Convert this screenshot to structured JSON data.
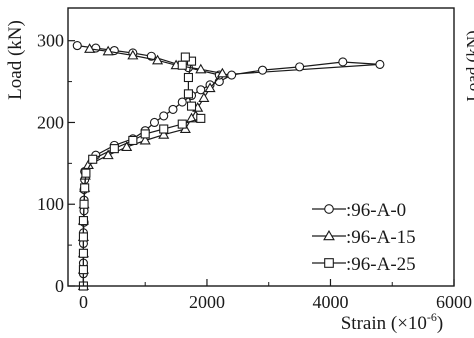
{
  "chart_data": {
    "type": "line",
    "xlabel": "Strain (×10",
    "xlabel_sup": "-6",
    "xlabel_close": ")",
    "ylabel": "Load (kN)",
    "right_ylabel_fragment": "Load (kN)",
    "xlim": [
      -250,
      6000
    ],
    "ylim": [
      0,
      340
    ],
    "xticks": [
      0,
      2000,
      4000,
      6000
    ],
    "yticks": [
      0,
      100,
      200,
      300
    ],
    "grid": false,
    "legend_position": "lower-right",
    "series": [
      {
        "name": ":96-A-0",
        "marker": "circle",
        "points": [
          [
            0,
            0
          ],
          [
            0,
            15
          ],
          [
            0,
            28
          ],
          [
            0,
            40
          ],
          [
            0,
            52
          ],
          [
            0,
            65
          ],
          [
            10,
            78
          ],
          [
            10,
            92
          ],
          [
            10,
            105
          ],
          [
            10,
            118
          ],
          [
            20,
            130
          ],
          [
            20,
            140
          ],
          [
            200,
            160
          ],
          [
            500,
            172
          ],
          [
            800,
            180
          ],
          [
            1000,
            190
          ],
          [
            1150,
            200
          ],
          [
            1300,
            208
          ],
          [
            1450,
            216
          ],
          [
            1600,
            225
          ],
          [
            1750,
            233
          ],
          [
            1900,
            240
          ],
          [
            2050,
            246
          ],
          [
            2200,
            250
          ],
          [
            2400,
            258
          ],
          [
            2900,
            264
          ],
          [
            3500,
            268
          ],
          [
            4200,
            274
          ],
          [
            4800,
            271
          ],
          [
            2200,
            258
          ],
          [
            1700,
            267
          ],
          [
            1100,
            281
          ],
          [
            800,
            285
          ],
          [
            500,
            288
          ],
          [
            200,
            291
          ],
          [
            -100,
            294
          ]
        ]
      },
      {
        "name": ":96-A-15",
        "marker": "triangle",
        "points": [
          [
            0,
            0
          ],
          [
            0,
            20
          ],
          [
            0,
            40
          ],
          [
            0,
            60
          ],
          [
            0,
            80
          ],
          [
            10,
            100
          ],
          [
            20,
            120
          ],
          [
            30,
            135
          ],
          [
            80,
            148
          ],
          [
            400,
            160
          ],
          [
            700,
            170
          ],
          [
            1000,
            178
          ],
          [
            1300,
            185
          ],
          [
            1650,
            192
          ],
          [
            1750,
            205
          ],
          [
            1850,
            218
          ],
          [
            1950,
            230
          ],
          [
            2050,
            242
          ],
          [
            2250,
            260
          ],
          [
            1900,
            265
          ],
          [
            1500,
            270
          ],
          [
            1200,
            276
          ],
          [
            800,
            282
          ],
          [
            400,
            287
          ],
          [
            100,
            290
          ]
        ]
      },
      {
        "name": ":96-A-25",
        "marker": "square",
        "points": [
          [
            0,
            0
          ],
          [
            0,
            20
          ],
          [
            0,
            40
          ],
          [
            0,
            60
          ],
          [
            0,
            80
          ],
          [
            10,
            100
          ],
          [
            20,
            120
          ],
          [
            40,
            138
          ],
          [
            150,
            155
          ],
          [
            500,
            168
          ],
          [
            800,
            178
          ],
          [
            1000,
            186
          ],
          [
            1300,
            192
          ],
          [
            1600,
            198
          ],
          [
            1900,
            205
          ],
          [
            1750,
            220
          ],
          [
            1700,
            235
          ],
          [
            1700,
            255
          ],
          [
            1750,
            275
          ],
          [
            1650,
            280
          ],
          [
            1600,
            270
          ]
        ]
      }
    ]
  },
  "colors": {
    "ink": "#1a1a1a",
    "marker_fill": "#ffffff"
  }
}
